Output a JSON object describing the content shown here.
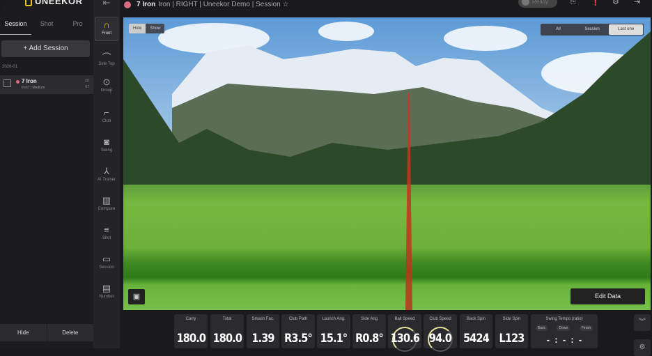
{
  "app": {
    "logo": "UNEEKOR"
  },
  "left": {
    "tabs": [
      "Session",
      "Shot",
      "Pro"
    ],
    "add_session": "+ Add Session",
    "date_group": "2026-01",
    "session": {
      "name": "7 Iron",
      "sub": "Iron7 | Medium",
      "count_top": "(3)",
      "count_bottom": "07"
    },
    "hide": "Hide",
    "delete": "Delete"
  },
  "nav": [
    {
      "label": "Front",
      "icon": "front-view-icon"
    },
    {
      "label": "Side Top",
      "icon": "side-top-icon"
    },
    {
      "label": "Group",
      "icon": "group-icon"
    },
    {
      "label": "Club",
      "icon": "club-icon"
    },
    {
      "label": "Swing",
      "icon": "camera-icon"
    },
    {
      "label": "AI Trainer",
      "icon": "ai-trainer-icon"
    },
    {
      "label": "Compare",
      "icon": "compare-icon"
    },
    {
      "label": "Shot",
      "icon": "shot-icon"
    },
    {
      "label": "Session",
      "icon": "session-icon"
    },
    {
      "label": "Number",
      "icon": "number-icon"
    }
  ],
  "topbar": {
    "title": "7 Iron",
    "subtitle": "Iron | RIGHT | Uneekor Demo | Session",
    "status": "Ready"
  },
  "view": {
    "hide": "Hide",
    "show": "Show",
    "filters": [
      "All",
      "Session",
      "Last one"
    ],
    "active_filter": "Last one",
    "edit_data": "Edit Data",
    "shot_line_color": "#d4321e"
  },
  "metrics": [
    {
      "label": "Carry",
      "value": "180.0"
    },
    {
      "label": "Total",
      "value": "180.0"
    },
    {
      "label": "Smash Fac.",
      "value": "1.39"
    },
    {
      "label": "Club Path",
      "value": "R3.5°"
    },
    {
      "label": "Launch Ang.",
      "value": "15.1°"
    },
    {
      "label": "Side Ang",
      "value": "R0.8°"
    },
    {
      "label": "Ball Speed",
      "value": "130.6"
    },
    {
      "label": "Club Speed",
      "value": "94.0"
    },
    {
      "label": "Back Spin",
      "value": "5424"
    },
    {
      "label": "Side Spin",
      "value": "L123"
    }
  ],
  "tempo": {
    "label": "Swing Tempo (ratio)",
    "back": "Back",
    "down": "Down",
    "finish": "Finish",
    "value": "-  :  -  :  -"
  }
}
